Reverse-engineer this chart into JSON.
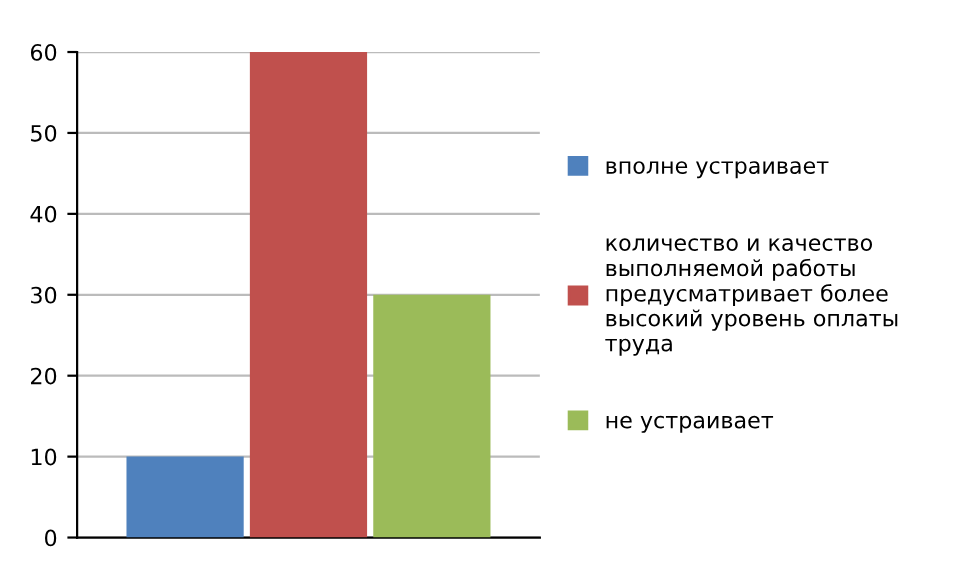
{
  "chart_data": {
    "type": "bar",
    "categories": [
      null
    ],
    "series": [
      {
        "name": "вполне устраивает",
        "color": "#4f81bd",
        "values": [
          10
        ]
      },
      {
        "name": "количество и качество выполняемой работы предусматривает более высокий уровень оплаты труда",
        "color": "#c0504d",
        "values": [
          60
        ]
      },
      {
        "name": "не устраивает",
        "color": "#9bbb59",
        "values": [
          30
        ]
      }
    ],
    "ylim": [
      0,
      60
    ],
    "yticks": [
      0,
      10,
      20,
      30,
      40,
      50,
      60
    ],
    "grid": "y",
    "legend": "right"
  }
}
